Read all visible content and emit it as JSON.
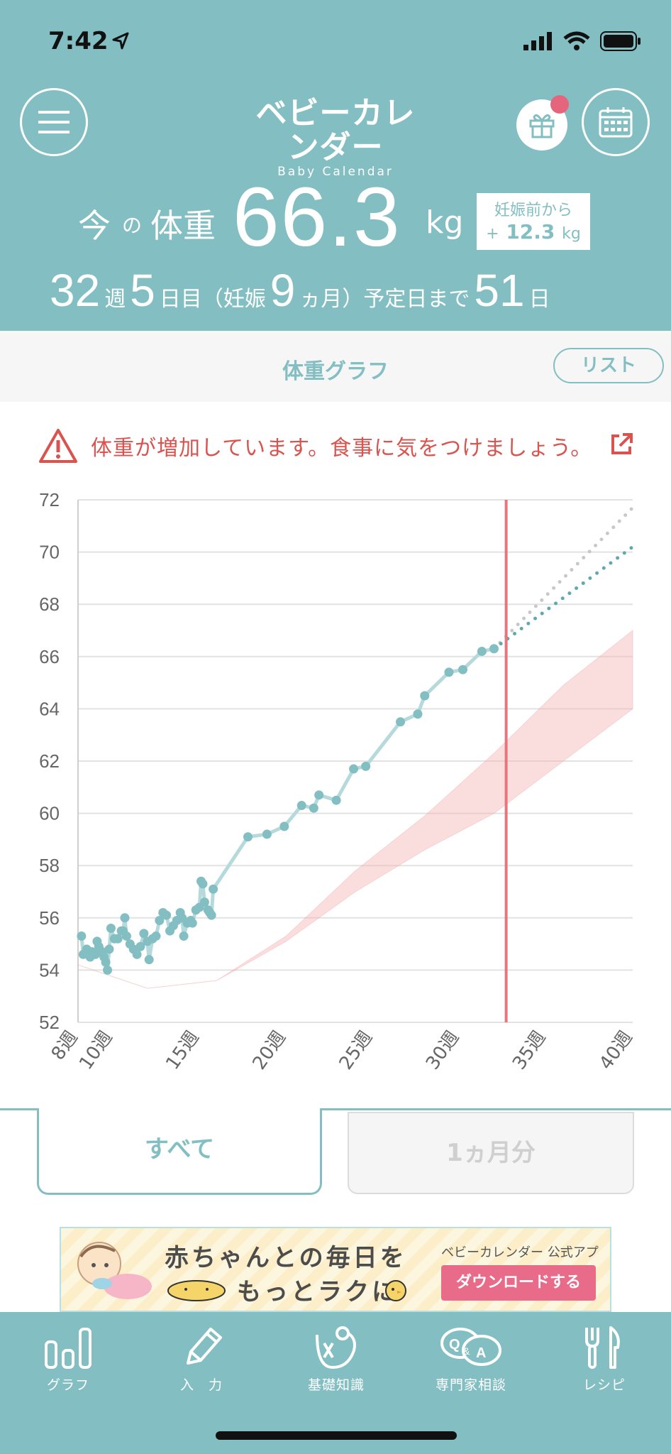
{
  "status_bar": {
    "time": "7:42"
  },
  "header": {
    "logo_jp": "ベビーカレンダー",
    "logo_en": "Baby Calendar",
    "weight_label_1": "今",
    "weight_label_no": "の",
    "weight_label_2": "体重",
    "weight_value": "66.3",
    "weight_unit": "kg",
    "diff_label": "妊娠前から",
    "diff_sign": "+",
    "diff_value": "12.3",
    "diff_unit": "kg",
    "week": "32",
    "week_unit": "週",
    "day": "5",
    "day_unit": "日目（妊娠",
    "month": "9",
    "month_unit": "ヵ月）予定日まで",
    "days_left": "51",
    "days_left_unit": "日"
  },
  "graph_bar": {
    "title": "体重グラフ",
    "list_button": "リスト"
  },
  "warning": {
    "text": "体重が増加しています。食事に気をつけましょう。"
  },
  "chart_data": {
    "type": "line",
    "x_tick_labels": [
      "8週",
      "10週",
      "15週",
      "20週",
      "25週",
      "30週",
      "35週",
      "40週"
    ],
    "xlim": [
      8,
      40
    ],
    "ylim": [
      52,
      72
    ],
    "y_ticks": [
      52,
      54,
      56,
      58,
      60,
      62,
      64,
      66,
      68,
      70,
      72
    ],
    "grid": true,
    "current_week": 32.7,
    "colors": {
      "series": "#83bfc2",
      "recommended": "#f4b6b6",
      "today": "#e8747c",
      "forecast_gray": "#c8c8c8"
    },
    "series": [
      {
        "values": [
          [
            8.2,
            55.3
          ],
          [
            8.3,
            54.6
          ],
          [
            8.5,
            54.8
          ],
          [
            8.7,
            54.5
          ],
          [
            8.8,
            54.7
          ],
          [
            9.0,
            54.6
          ],
          [
            9.1,
            55.1
          ],
          [
            9.2,
            54.9
          ],
          [
            9.4,
            54.7
          ],
          [
            9.5,
            54.5
          ],
          [
            9.6,
            54.3
          ],
          [
            9.7,
            54.0
          ],
          [
            9.8,
            54.8
          ],
          [
            9.9,
            55.6
          ],
          [
            10.1,
            55.2
          ],
          [
            10.3,
            55.2
          ],
          [
            10.5,
            55.5
          ],
          [
            10.6,
            55.5
          ],
          [
            10.7,
            56.0
          ],
          [
            10.8,
            55.3
          ],
          [
            11.0,
            55.0
          ],
          [
            11.2,
            54.8
          ],
          [
            11.4,
            54.6
          ],
          [
            11.6,
            54.9
          ],
          [
            11.8,
            55.4
          ],
          [
            12.0,
            55.1
          ],
          [
            12.1,
            54.4
          ],
          [
            12.3,
            55.2
          ],
          [
            12.5,
            55.3
          ],
          [
            12.7,
            55.9
          ],
          [
            12.9,
            56.2
          ],
          [
            13.1,
            56.1
          ],
          [
            13.3,
            55.5
          ],
          [
            13.5,
            55.7
          ],
          [
            13.7,
            55.9
          ],
          [
            13.9,
            56.2
          ],
          [
            14.0,
            56.0
          ],
          [
            14.1,
            55.3
          ],
          [
            14.3,
            55.8
          ],
          [
            14.5,
            55.9
          ],
          [
            14.6,
            55.8
          ],
          [
            14.8,
            56.3
          ],
          [
            15.0,
            56.4
          ],
          [
            15.1,
            57.4
          ],
          [
            15.2,
            57.3
          ],
          [
            15.3,
            56.6
          ],
          [
            15.5,
            56.3
          ],
          [
            15.6,
            56.2
          ],
          [
            15.7,
            56.1
          ],
          [
            15.8,
            57.1
          ],
          [
            17.8,
            59.1
          ],
          [
            18.9,
            59.2
          ],
          [
            19.9,
            59.5
          ],
          [
            20.9,
            60.3
          ],
          [
            21.6,
            60.2
          ],
          [
            21.9,
            60.7
          ],
          [
            22.9,
            60.5
          ],
          [
            23.9,
            61.7
          ],
          [
            24.6,
            61.8
          ],
          [
            26.6,
            63.5
          ],
          [
            27.6,
            63.8
          ],
          [
            28.0,
            64.5
          ],
          [
            29.4,
            65.4
          ],
          [
            30.2,
            65.5
          ],
          [
            31.3,
            66.2
          ],
          [
            32.0,
            66.3
          ]
        ]
      }
    ],
    "recommended_band": {
      "x": [
        8,
        12,
        16,
        20,
        24,
        28,
        32,
        36,
        40
      ],
      "lower": [
        54.2,
        53.3,
        53.6,
        55.1,
        57.0,
        58.6,
        60.0,
        62.0,
        64.0
      ],
      "upper": [
        54.2,
        53.3,
        53.6,
        55.3,
        57.8,
        59.9,
        62.3,
        64.9,
        67.0
      ]
    },
    "forecast": {
      "x": [
        32.0,
        40.0
      ],
      "teal": [
        66.3,
        70.2
      ],
      "gray": [
        66.3,
        71.7
      ]
    }
  },
  "period_tabs": {
    "all": "すべて",
    "month": "1ヵ月分"
  },
  "banner": {
    "line1": "赤ちゃんとの毎日を",
    "line2": "もっとラクに",
    "app_label": "ベビーカレンダー 公式アプリ",
    "download_button": "ダウンロードする"
  },
  "bottom_nav": {
    "items": [
      {
        "label": "グラフ",
        "icon": "bar-chart-icon"
      },
      {
        "label": "入　力",
        "icon": "pencil-icon"
      },
      {
        "label": "基礎知識",
        "icon": "book-stork-icon"
      },
      {
        "label": "専門家相談",
        "icon": "qa-bubble-icon"
      },
      {
        "label": "レシピ",
        "icon": "fork-knife-icon"
      }
    ]
  }
}
